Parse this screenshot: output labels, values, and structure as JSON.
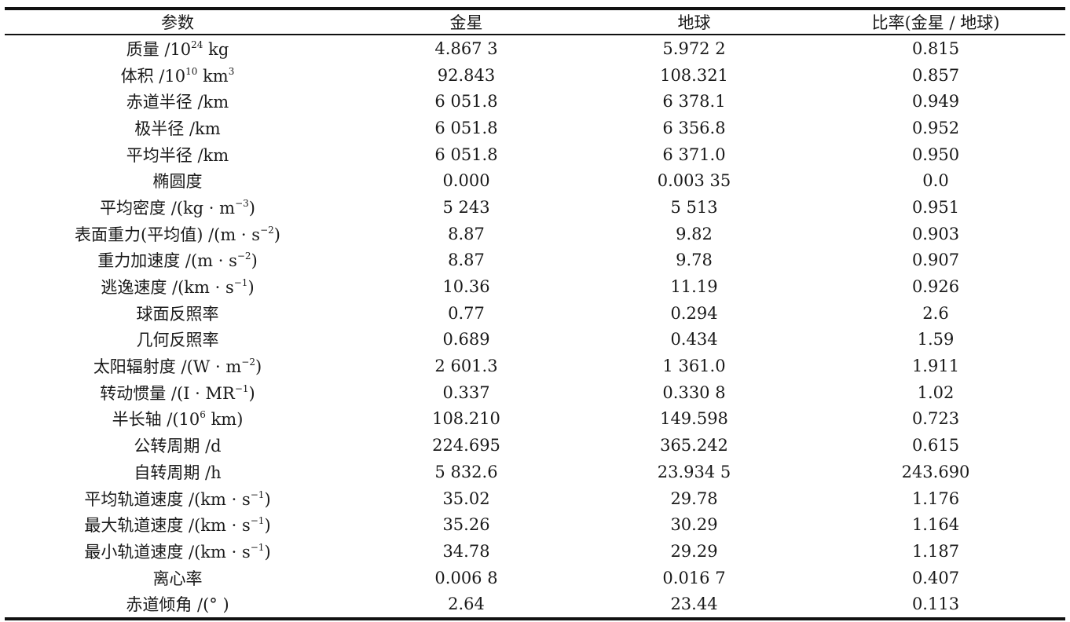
{
  "table": {
    "headers": [
      "参数",
      "金星",
      "地球",
      "比率(金星 / 地球)"
    ],
    "rows": [
      {
        "param": "质量 /10<sup>24</sup> kg",
        "venus": "4.867 3",
        "earth": "5.972 2",
        "ratio": "0.815"
      },
      {
        "param": "体积 /10<sup>10</sup> km<sup>3</sup>",
        "venus": "92.843",
        "earth": "108.321",
        "ratio": "0.857"
      },
      {
        "param": "赤道半径 /km",
        "venus": "6 051.8",
        "earth": "6 378.1",
        "ratio": "0.949"
      },
      {
        "param": "极半径 /km",
        "venus": "6 051.8",
        "earth": "6 356.8",
        "ratio": "0.952"
      },
      {
        "param": "平均半径 /km",
        "venus": "6 051.8",
        "earth": "6 371.0",
        "ratio": "0.950"
      },
      {
        "param": "椭圆度",
        "venus": "0.000",
        "earth": "0.003 35",
        "ratio": "0.0"
      },
      {
        "param": "平均密度 /(kg · m<sup>−3</sup>)",
        "venus": "5 243",
        "earth": "5 513",
        "ratio": "0.951"
      },
      {
        "param": "表面重力(平均值) /(m · s<sup>−2</sup>)",
        "venus": "8.87",
        "earth": "9.82",
        "ratio": "0.903"
      },
      {
        "param": "重力加速度 /(m · s<sup>−2</sup>)",
        "venus": "8.87",
        "earth": "9.78",
        "ratio": "0.907"
      },
      {
        "param": "逃逸速度 /(km · s<sup>−1</sup>)",
        "venus": "10.36",
        "earth": "11.19",
        "ratio": "0.926"
      },
      {
        "param": "球面反照率",
        "venus": "0.77",
        "earth": "0.294",
        "ratio": "2.6"
      },
      {
        "param": "几何反照率",
        "venus": "0.689",
        "earth": "0.434",
        "ratio": "1.59"
      },
      {
        "param": "太阳辐射度 /(W · m<sup>−2</sup>)",
        "venus": "2 601.3",
        "earth": "1 361.0",
        "ratio": "1.911"
      },
      {
        "param": "转动惯量 /(I · MR<sup>−1</sup>)",
        "venus": "0.337",
        "earth": "0.330 8",
        "ratio": "1.02"
      },
      {
        "param": "半长轴 /(10<sup>6</sup> km)",
        "venus": "108.210",
        "earth": "149.598",
        "ratio": "0.723"
      },
      {
        "param": "公转周期 /d",
        "venus": "224.695",
        "earth": "365.242",
        "ratio": "0.615"
      },
      {
        "param": "自转周期 /h",
        "venus": "5 832.6",
        "earth": "23.934 5",
        "ratio": "243.690"
      },
      {
        "param": "平均轨道速度 /(km · s<sup>−1</sup>)",
        "venus": "35.02",
        "earth": "29.78",
        "ratio": "1.176"
      },
      {
        "param": "最大轨道速度 /(km · s<sup>−1</sup>)",
        "venus": "35.26",
        "earth": "30.29",
        "ratio": "1.164"
      },
      {
        "param": "最小轨道速度 /(km · s<sup>−1</sup>)",
        "venus": "34.78",
        "earth": "29.29",
        "ratio": "1.187"
      },
      {
        "param": "离心率",
        "venus": "0.006 8",
        "earth": "0.016 7",
        "ratio": "0.407"
      },
      {
        "param": "赤道倾角 /(° )",
        "venus": "2.64",
        "earth": "23.44",
        "ratio": "0.113"
      }
    ]
  }
}
